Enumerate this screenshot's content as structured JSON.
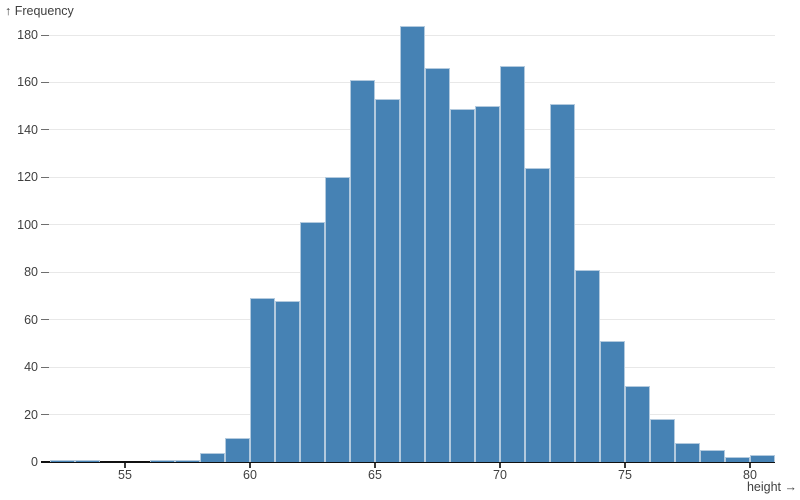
{
  "header": {
    "y_axis_title": "↑ Frequency",
    "x_axis_title": "height →"
  },
  "colors": {
    "bar_fill": "#4682b4",
    "bar_stroke": "#b3cade",
    "gridline": "#e8e8e8",
    "axis_line": "#111111",
    "text": "#3f3f3f"
  },
  "chart_data": {
    "type": "bar",
    "subtype": "histogram",
    "title": "",
    "xlabel": "height",
    "ylabel": "Frequency",
    "bin_start": 52,
    "bin_width": 1,
    "counts": [
      1,
      1,
      0,
      0,
      1,
      1,
      4,
      10,
      69,
      68,
      101,
      120,
      161,
      153,
      184,
      166,
      149,
      150,
      167,
      124,
      151,
      81,
      51,
      32,
      18,
      8,
      5,
      2,
      3
    ],
    "bins": [
      {
        "x0": 52,
        "x1": 53,
        "count": 1
      },
      {
        "x0": 53,
        "x1": 54,
        "count": 1
      },
      {
        "x0": 54,
        "x1": 55,
        "count": 0
      },
      {
        "x0": 55,
        "x1": 56,
        "count": 0
      },
      {
        "x0": 56,
        "x1": 57,
        "count": 1
      },
      {
        "x0": 57,
        "x1": 58,
        "count": 1
      },
      {
        "x0": 58,
        "x1": 59,
        "count": 4
      },
      {
        "x0": 59,
        "x1": 60,
        "count": 10
      },
      {
        "x0": 60,
        "x1": 61,
        "count": 69
      },
      {
        "x0": 61,
        "x1": 62,
        "count": 68
      },
      {
        "x0": 62,
        "x1": 63,
        "count": 101
      },
      {
        "x0": 63,
        "x1": 64,
        "count": 120
      },
      {
        "x0": 64,
        "x1": 65,
        "count": 161
      },
      {
        "x0": 65,
        "x1": 66,
        "count": 153
      },
      {
        "x0": 66,
        "x1": 67,
        "count": 184
      },
      {
        "x0": 67,
        "x1": 68,
        "count": 166
      },
      {
        "x0": 68,
        "x1": 69,
        "count": 149
      },
      {
        "x0": 69,
        "x1": 70,
        "count": 150
      },
      {
        "x0": 70,
        "x1": 71,
        "count": 167
      },
      {
        "x0": 71,
        "x1": 72,
        "count": 124
      },
      {
        "x0": 72,
        "x1": 73,
        "count": 151
      },
      {
        "x0": 73,
        "x1": 74,
        "count": 81
      },
      {
        "x0": 74,
        "x1": 75,
        "count": 51
      },
      {
        "x0": 75,
        "x1": 76,
        "count": 32
      },
      {
        "x0": 76,
        "x1": 77,
        "count": 18
      },
      {
        "x0": 77,
        "x1": 78,
        "count": 8
      },
      {
        "x0": 78,
        "x1": 79,
        "count": 5
      },
      {
        "x0": 79,
        "x1": 80,
        "count": 2
      },
      {
        "x0": 80,
        "x1": 81,
        "count": 3
      }
    ],
    "x_ticks": [
      55,
      60,
      65,
      70,
      75,
      80
    ],
    "y_ticks": [
      0,
      20,
      40,
      60,
      80,
      100,
      120,
      140,
      160,
      180
    ],
    "xlim": [
      52,
      81
    ],
    "ylim": [
      0,
      180
    ],
    "grid": "horizontal",
    "legend": "none"
  }
}
